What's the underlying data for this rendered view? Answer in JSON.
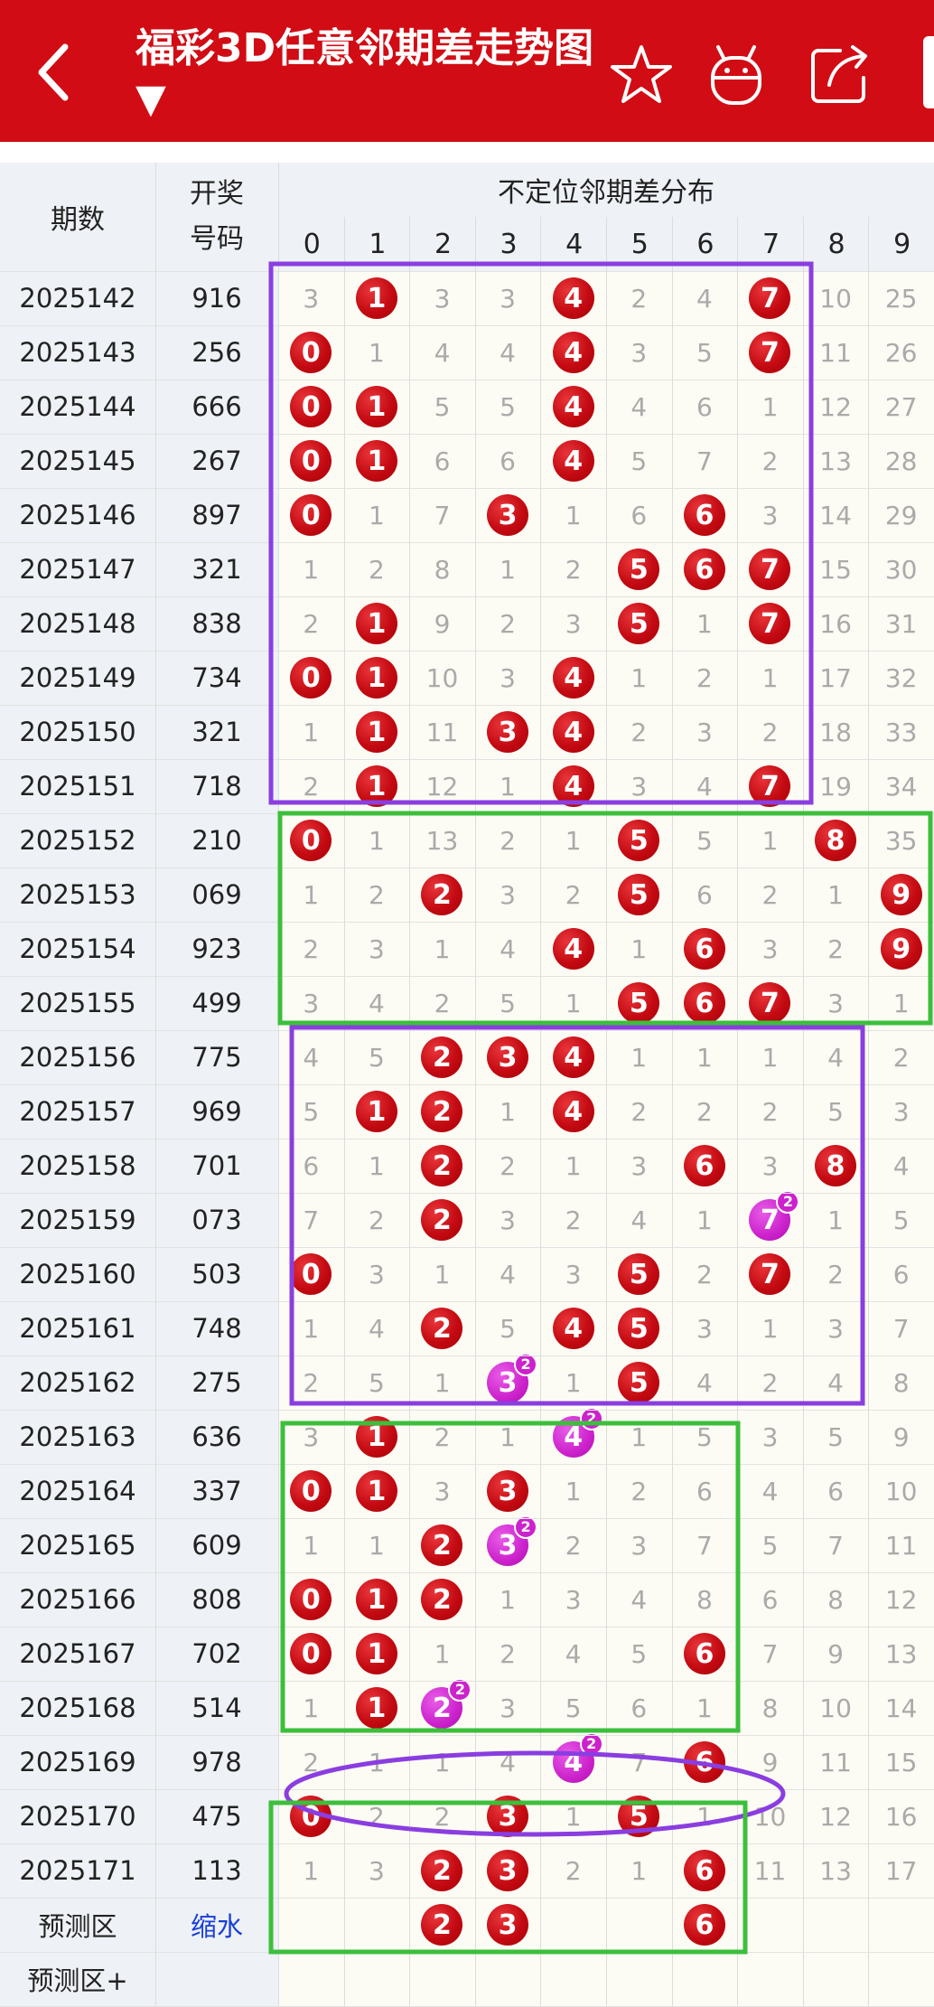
{
  "header": {
    "title": "福彩3D任意邻期差走势图 ▼",
    "back_icon": "back-icon",
    "icons": [
      "star-icon",
      "robot-icon",
      "share-icon"
    ],
    "bg_color": "#d10c14"
  },
  "table": {
    "col_period": "期数",
    "col_draw": "开奖号码",
    "col_group": "不定位邻期差分布",
    "digits": [
      "0",
      "1",
      "2",
      "3",
      "4",
      "5",
      "6",
      "7",
      "8",
      "9"
    ],
    "rows": [
      {
        "period": "2025142",
        "draw": "916",
        "cells": [
          "3",
          "1",
          "3",
          "3",
          "4",
          "2",
          "4",
          "7",
          "10",
          "25"
        ],
        "hits": [
          1,
          4,
          7
        ],
        "pink": []
      },
      {
        "period": "2025143",
        "draw": "256",
        "cells": [
          "0",
          "1",
          "4",
          "4",
          "4",
          "3",
          "5",
          "7",
          "11",
          "26"
        ],
        "hits": [
          0,
          4,
          7
        ],
        "pink": []
      },
      {
        "period": "2025144",
        "draw": "666",
        "cells": [
          "0",
          "1",
          "5",
          "5",
          "4",
          "4",
          "6",
          "1",
          "12",
          "27"
        ],
        "hits": [
          0,
          1,
          4
        ],
        "pink": []
      },
      {
        "period": "2025145",
        "draw": "267",
        "cells": [
          "0",
          "1",
          "6",
          "6",
          "4",
          "5",
          "7",
          "2",
          "13",
          "28"
        ],
        "hits": [
          0,
          1,
          4
        ],
        "pink": []
      },
      {
        "period": "2025146",
        "draw": "897",
        "cells": [
          "0",
          "1",
          "7",
          "3",
          "1",
          "6",
          "6",
          "3",
          "14",
          "29"
        ],
        "hits": [
          0,
          3,
          6
        ],
        "pink": []
      },
      {
        "period": "2025147",
        "draw": "321",
        "cells": [
          "1",
          "2",
          "8",
          "1",
          "2",
          "5",
          "6",
          "7",
          "15",
          "30"
        ],
        "hits": [
          5,
          6,
          7
        ],
        "pink": []
      },
      {
        "period": "2025148",
        "draw": "838",
        "cells": [
          "2",
          "1",
          "9",
          "2",
          "3",
          "5",
          "1",
          "7",
          "16",
          "31"
        ],
        "hits": [
          1,
          5,
          7
        ],
        "pink": []
      },
      {
        "period": "2025149",
        "draw": "734",
        "cells": [
          "0",
          "1",
          "10",
          "3",
          "4",
          "1",
          "2",
          "1",
          "17",
          "32"
        ],
        "hits": [
          0,
          1,
          4
        ],
        "pink": []
      },
      {
        "period": "2025150",
        "draw": "321",
        "cells": [
          "1",
          "1",
          "11",
          "3",
          "4",
          "2",
          "3",
          "2",
          "18",
          "33"
        ],
        "hits": [
          1,
          3,
          4
        ],
        "pink": []
      },
      {
        "period": "2025151",
        "draw": "718",
        "cells": [
          "2",
          "1",
          "12",
          "1",
          "4",
          "3",
          "4",
          "7",
          "19",
          "34"
        ],
        "hits": [
          1,
          4,
          7
        ],
        "pink": []
      },
      {
        "period": "2025152",
        "draw": "210",
        "cells": [
          "0",
          "1",
          "13",
          "2",
          "1",
          "5",
          "5",
          "1",
          "8",
          "35"
        ],
        "hits": [
          0,
          5,
          8
        ],
        "pink": []
      },
      {
        "period": "2025153",
        "draw": "069",
        "cells": [
          "1",
          "2",
          "2",
          "3",
          "2",
          "5",
          "6",
          "2",
          "1",
          "9"
        ],
        "hits": [
          2,
          5,
          9
        ],
        "pink": []
      },
      {
        "period": "2025154",
        "draw": "923",
        "cells": [
          "2",
          "3",
          "1",
          "4",
          "4",
          "1",
          "6",
          "3",
          "2",
          "9"
        ],
        "hits": [
          4,
          6,
          9
        ],
        "pink": []
      },
      {
        "period": "2025155",
        "draw": "499",
        "cells": [
          "3",
          "4",
          "2",
          "5",
          "1",
          "5",
          "6",
          "7",
          "3",
          "1"
        ],
        "hits": [
          5,
          6,
          7
        ],
        "pink": []
      },
      {
        "period": "2025156",
        "draw": "775",
        "cells": [
          "4",
          "5",
          "2",
          "3",
          "4",
          "1",
          "1",
          "1",
          "4",
          "2"
        ],
        "hits": [
          2,
          3,
          4
        ],
        "pink": []
      },
      {
        "period": "2025157",
        "draw": "969",
        "cells": [
          "5",
          "1",
          "2",
          "1",
          "4",
          "2",
          "2",
          "2",
          "5",
          "3"
        ],
        "hits": [
          1,
          2,
          4
        ],
        "pink": []
      },
      {
        "period": "2025158",
        "draw": "701",
        "cells": [
          "6",
          "1",
          "2",
          "2",
          "1",
          "3",
          "6",
          "3",
          "8",
          "4"
        ],
        "hits": [
          2,
          6,
          8
        ],
        "pink": []
      },
      {
        "period": "2025159",
        "draw": "073",
        "cells": [
          "7",
          "2",
          "2",
          "3",
          "2",
          "4",
          "1",
          "7",
          "1",
          "5"
        ],
        "hits": [
          2
        ],
        "pink": [
          7
        ]
      },
      {
        "period": "2025160",
        "draw": "503",
        "cells": [
          "0",
          "3",
          "1",
          "4",
          "3",
          "5",
          "2",
          "7",
          "2",
          "6"
        ],
        "hits": [
          0,
          5,
          7
        ],
        "pink": []
      },
      {
        "period": "2025161",
        "draw": "748",
        "cells": [
          "1",
          "4",
          "2",
          "5",
          "4",
          "5",
          "3",
          "1",
          "3",
          "7"
        ],
        "hits": [
          2,
          4,
          5
        ],
        "pink": []
      },
      {
        "period": "2025162",
        "draw": "275",
        "cells": [
          "2",
          "5",
          "1",
          "3",
          "1",
          "5",
          "4",
          "2",
          "4",
          "8"
        ],
        "hits": [
          5
        ],
        "pink": [
          3
        ]
      },
      {
        "period": "2025163",
        "draw": "636",
        "cells": [
          "3",
          "1",
          "2",
          "1",
          "4",
          "1",
          "5",
          "3",
          "5",
          "9"
        ],
        "hits": [
          1
        ],
        "pink": [
          4
        ]
      },
      {
        "period": "2025164",
        "draw": "337",
        "cells": [
          "0",
          "1",
          "3",
          "3",
          "1",
          "2",
          "6",
          "4",
          "6",
          "10"
        ],
        "hits": [
          0,
          1,
          3
        ],
        "pink": []
      },
      {
        "period": "2025165",
        "draw": "609",
        "cells": [
          "1",
          "1",
          "2",
          "3",
          "2",
          "3",
          "7",
          "5",
          "7",
          "11"
        ],
        "hits": [
          2
        ],
        "pink": [
          3
        ]
      },
      {
        "period": "2025166",
        "draw": "808",
        "cells": [
          "0",
          "1",
          "2",
          "1",
          "3",
          "4",
          "8",
          "6",
          "8",
          "12"
        ],
        "hits": [
          0,
          1,
          2
        ],
        "pink": []
      },
      {
        "period": "2025167",
        "draw": "702",
        "cells": [
          "0",
          "1",
          "1",
          "2",
          "4",
          "5",
          "6",
          "7",
          "9",
          "13"
        ],
        "hits": [
          0,
          1,
          6
        ],
        "pink": []
      },
      {
        "period": "2025168",
        "draw": "514",
        "cells": [
          "1",
          "1",
          "2",
          "3",
          "5",
          "6",
          "1",
          "8",
          "10",
          "14"
        ],
        "hits": [
          1
        ],
        "pink": [
          2
        ]
      },
      {
        "period": "2025169",
        "draw": "978",
        "cells": [
          "2",
          "1",
          "1",
          "4",
          "4",
          "7",
          "6",
          "9",
          "11",
          "15"
        ],
        "hits": [
          6
        ],
        "pink": [
          4
        ]
      },
      {
        "period": "2025170",
        "draw": "475",
        "cells": [
          "0",
          "2",
          "2",
          "3",
          "1",
          "5",
          "1",
          "10",
          "12",
          "16"
        ],
        "hits": [
          0,
          3,
          5
        ],
        "pink": []
      },
      {
        "period": "2025171",
        "draw": "113",
        "cells": [
          "1",
          "3",
          "2",
          "3",
          "2",
          "1",
          "6",
          "11",
          "13",
          "17"
        ],
        "hits": [
          2,
          3,
          6
        ],
        "pink": []
      }
    ],
    "predict_label": "预测区",
    "shrink_label": "缩水",
    "predict_balls": [
      2,
      3,
      6
    ],
    "predict_plus_label": "预测区+",
    "repeat_badge": "2",
    "colors": {
      "ball": "#c40a12",
      "pink": "#cc22cc",
      "purple": "#8a3ee0",
      "green": "#3cbf3c"
    }
  }
}
